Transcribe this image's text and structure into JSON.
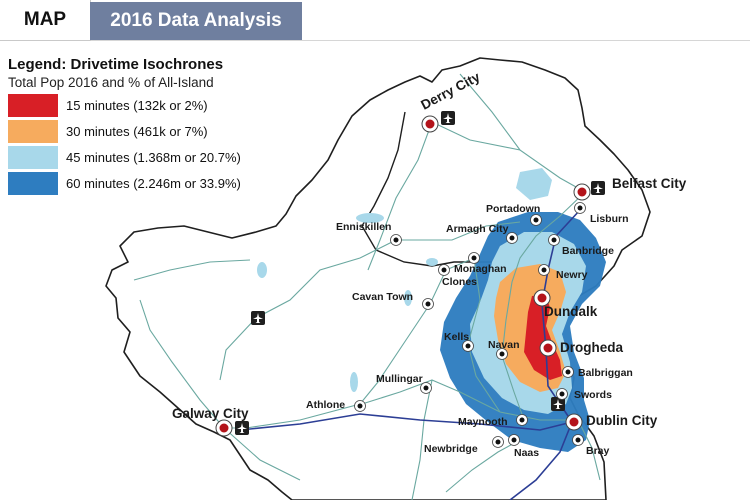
{
  "tabs": {
    "map": "MAP",
    "analysis": "2016 Data Analysis"
  },
  "legend": {
    "title": "Legend: Drivetime Isochrones",
    "subtitle": "Total Pop 2016 and % of All-Island",
    "items": [
      {
        "label": "15 minutes ",
        "detail": "(132k or 2%)",
        "color": "#d81f26"
      },
      {
        "label": "30 minutes ",
        "detail": "(461k or 7%)",
        "color": "#f6ab5e"
      },
      {
        "label": "45 minutes ",
        "detail": "(1.368m or 20.7%)",
        "color": "#a8d8ea"
      },
      {
        "label": "60 minutes ",
        "detail": "(2.246m or 33.9%)",
        "color": "#2e7dc0"
      }
    ]
  },
  "places": {
    "derry": "Derry City",
    "belfast": "Belfast City",
    "portadown": "Portadown",
    "lisburn": "Lisburn",
    "enniskillen": "Enniskillen",
    "armagh": "Armagh City",
    "banbridge": "Banbridge",
    "monaghan": "Monaghan",
    "clones": "Clones",
    "newry": "Newry",
    "cavan": "Cavan Town",
    "dundalk": "Dundalk",
    "kells": "Kells",
    "navan": "Navan",
    "drogheda": "Drogheda",
    "mullingar": "Mullingar",
    "balbriggan": "Balbriggan",
    "swords": "Swords",
    "athlone": "Athlone",
    "galway": "Galway City",
    "maynooth": "Maynooth",
    "dublin": "Dublin City",
    "newbridge": "Newbridge",
    "naas": "Naas",
    "bray": "Bray"
  },
  "icons": {
    "airport": "airport-icon",
    "town": "town-marker-icon",
    "city": "city-marker-icon"
  }
}
